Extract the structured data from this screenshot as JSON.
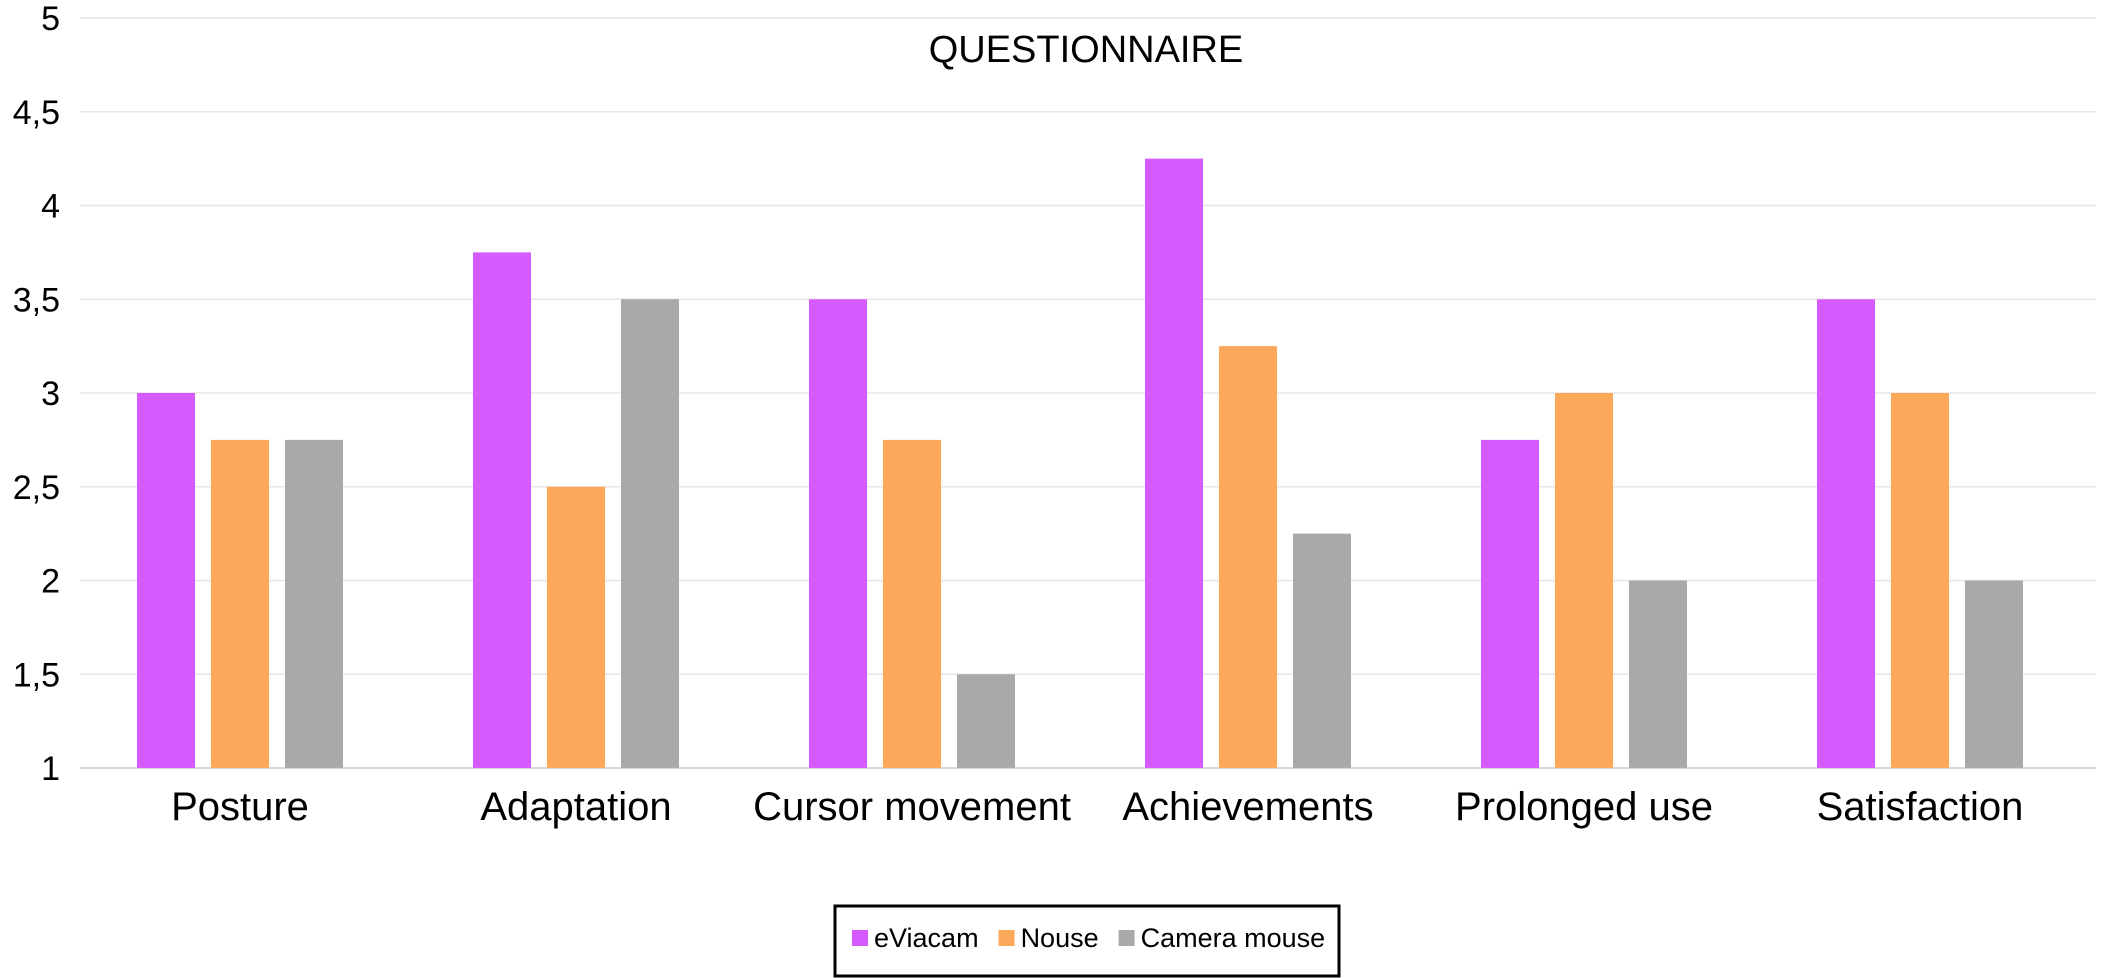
{
  "chart_data": {
    "type": "bar",
    "title": "QUESTIONNAIRE",
    "xlabel": "",
    "ylabel": "",
    "ylim": [
      1,
      5
    ],
    "yticks": [
      "1",
      "1,5",
      "2",
      "2,5",
      "3",
      "3,5",
      "4",
      "4,5",
      "5"
    ],
    "yticks_values": [
      1,
      1.5,
      2,
      2.5,
      3,
      3.5,
      4,
      4.5,
      5
    ],
    "categories": [
      "Posture",
      "Adaptation",
      "Cursor movement",
      "Achievements",
      "Prolonged use",
      "Satisfaction"
    ],
    "series": [
      {
        "name": "eViacam",
        "color": "#d65bff",
        "values": [
          3,
          3.75,
          3.5,
          4.25,
          2.75,
          3.5
        ]
      },
      {
        "name": "Nouse",
        "color": "#fca85a",
        "values": [
          2.75,
          2.5,
          2.75,
          3.25,
          3,
          3
        ]
      },
      {
        "name": "Camera mouse",
        "color": "#a9a9a9",
        "values": [
          2.75,
          3.5,
          1.5,
          2.25,
          2,
          2
        ]
      }
    ],
    "grid": true,
    "legend_position": "bottom"
  }
}
